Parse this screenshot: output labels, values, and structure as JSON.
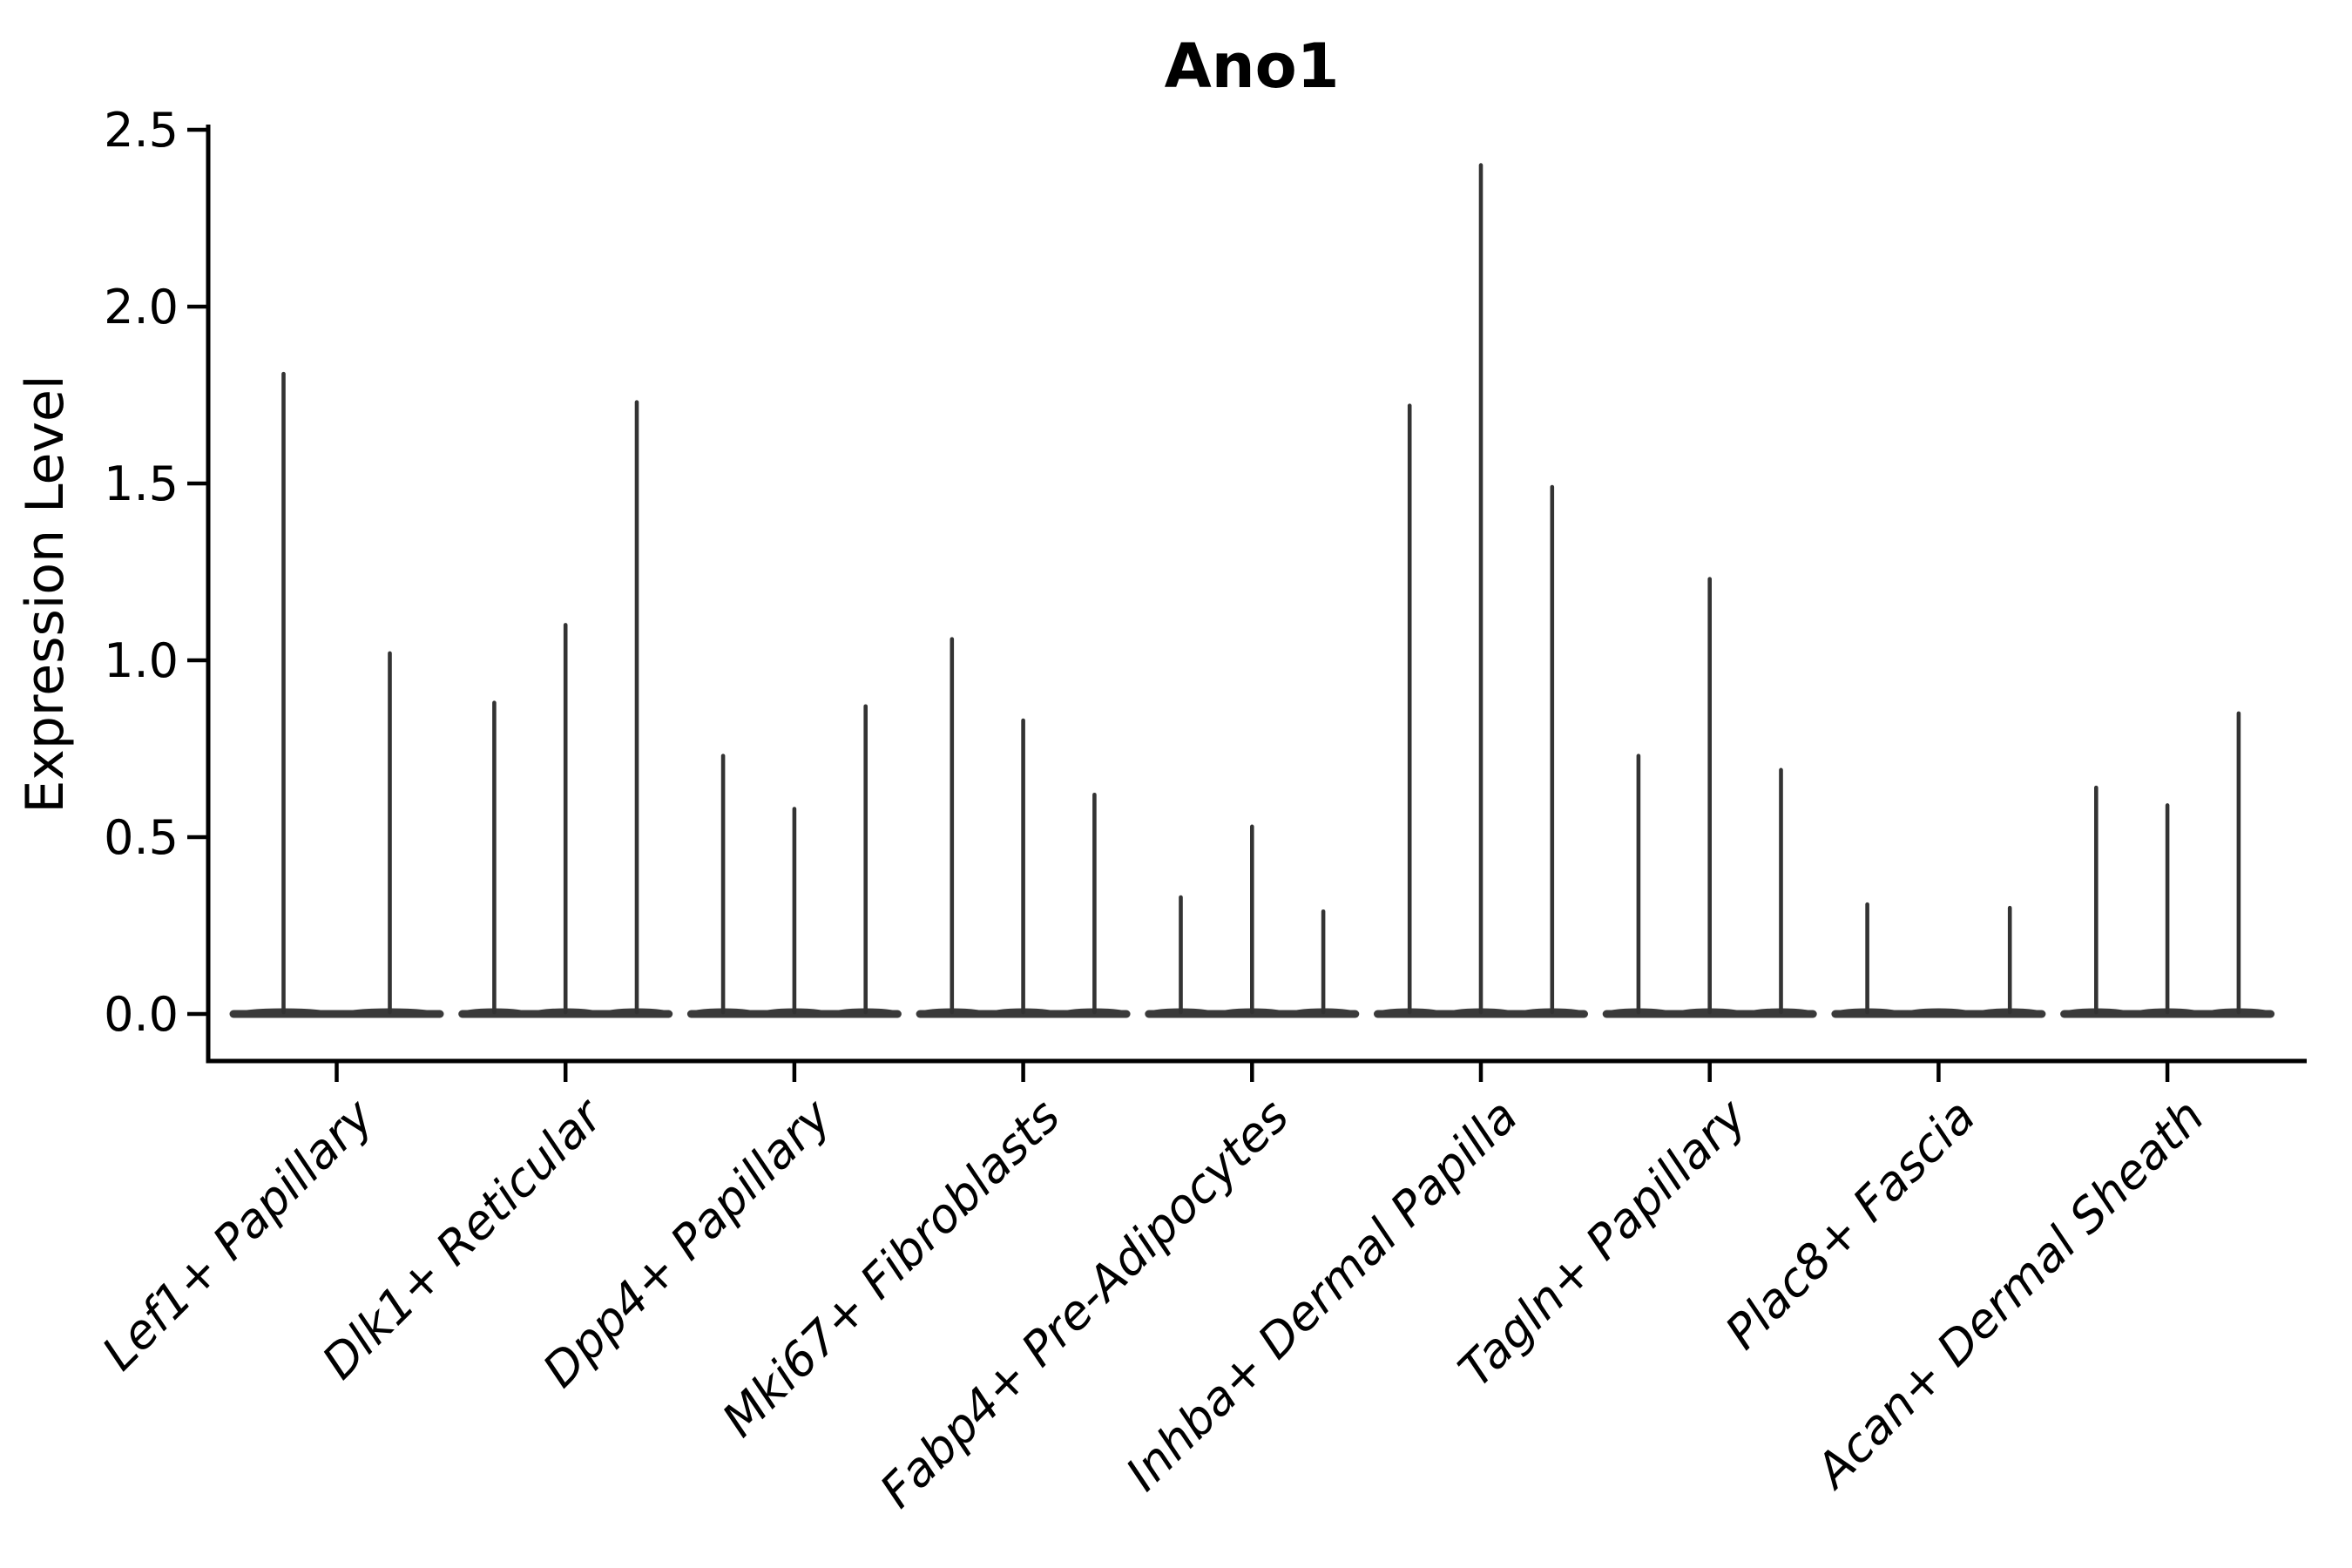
{
  "figure": {
    "title": "Ano1",
    "y_axis_label": "Expression Level"
  },
  "chart_data": {
    "type": "violin",
    "title": "Ano1",
    "xlabel": "",
    "ylabel": "Expression Level",
    "ylim": [
      0,
      2.5
    ],
    "yticks": [
      0.0,
      0.5,
      1.0,
      1.5,
      2.0,
      2.5
    ],
    "ytick_labels": [
      "0.0",
      "0.5",
      "1.0",
      "1.5",
      "2.0",
      "2.5"
    ],
    "grid": false,
    "legend": "none",
    "description": "Single-cell expression violin plot; violins are collapsed to flat bases at 0 with thin spikes reaching the maximum expression value of each violin.",
    "categories": [
      "Lef1+ Papillary",
      "Dlk1+ Reticular",
      "Dpp4+ Papillary",
      "Mki67+ Fibroblasts",
      "Fabp4+ Pre-Adipocytes",
      "Inhba+ Dermal Papilla",
      "Tagln+ Papillary",
      "Plac8+ Fascia",
      "Acan+ Dermal Sheath"
    ],
    "groups": [
      {
        "category": "Lef1+ Papillary",
        "violins": 2,
        "spike_max_expression": [
          1.81,
          1.02
        ]
      },
      {
        "category": "Dlk1+ Reticular",
        "violins": 3,
        "spike_max_expression": [
          0.88,
          1.1,
          1.73
        ]
      },
      {
        "category": "Dpp4+ Papillary",
        "violins": 3,
        "spike_max_expression": [
          0.73,
          0.58,
          0.87
        ]
      },
      {
        "category": "Mki67+ Fibroblasts",
        "violins": 3,
        "spike_max_expression": [
          1.06,
          0.83,
          0.62
        ]
      },
      {
        "category": "Fabp4+ Pre-Adipocytes",
        "violins": 3,
        "spike_max_expression": [
          0.33,
          0.53,
          0.29
        ]
      },
      {
        "category": "Inhba+ Dermal Papilla",
        "violins": 3,
        "spike_max_expression": [
          1.72,
          2.4,
          1.49
        ]
      },
      {
        "category": "Tagln+ Papillary",
        "violins": 3,
        "spike_max_expression": [
          0.73,
          1.23,
          0.69
        ]
      },
      {
        "category": "Plac8+ Fascia",
        "violins": 3,
        "spike_max_expression": [
          0.31,
          0.0,
          0.3
        ]
      },
      {
        "category": "Acan+ Dermal Sheath",
        "violins": 3,
        "spike_max_expression": [
          0.64,
          0.59,
          0.85
        ]
      }
    ],
    "style": {
      "violin_color": "#333333",
      "base_color": "#3a3a3a",
      "axis_color": "#000000",
      "background": "#ffffff",
      "x_labels_rotation_deg": 45,
      "x_labels_italic": true,
      "title_bold": true
    }
  }
}
